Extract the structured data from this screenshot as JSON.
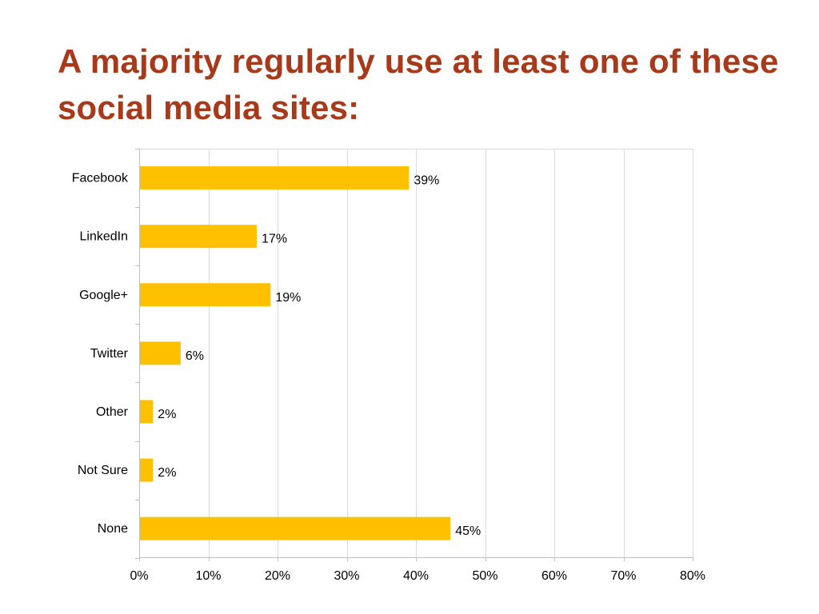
{
  "slide": {
    "title": "A majority regularly use at least one of these social media sites:"
  },
  "colors": {
    "title": "#A63A1B",
    "bar": "#FFC000",
    "grid": "#D9D9D9",
    "axis": "#BFBFBF"
  },
  "chart_data": {
    "type": "bar",
    "orientation": "horizontal",
    "categories": [
      "Facebook",
      "LinkedIn",
      "Google+",
      "Twitter",
      "Other",
      "Not Sure",
      "None"
    ],
    "values": [
      39,
      17,
      19,
      6,
      2,
      2,
      45
    ],
    "data_labels": [
      "39%",
      "17%",
      "19%",
      "6%",
      "2%",
      "2%",
      "45%"
    ],
    "x_ticks": [
      0,
      10,
      20,
      30,
      40,
      50,
      60,
      70,
      80
    ],
    "x_tick_labels": [
      "0%",
      "10%",
      "20%",
      "30%",
      "40%",
      "50%",
      "60%",
      "70%",
      "80%"
    ],
    "xlim": [
      0,
      80
    ],
    "grid": true,
    "legend": "none"
  }
}
